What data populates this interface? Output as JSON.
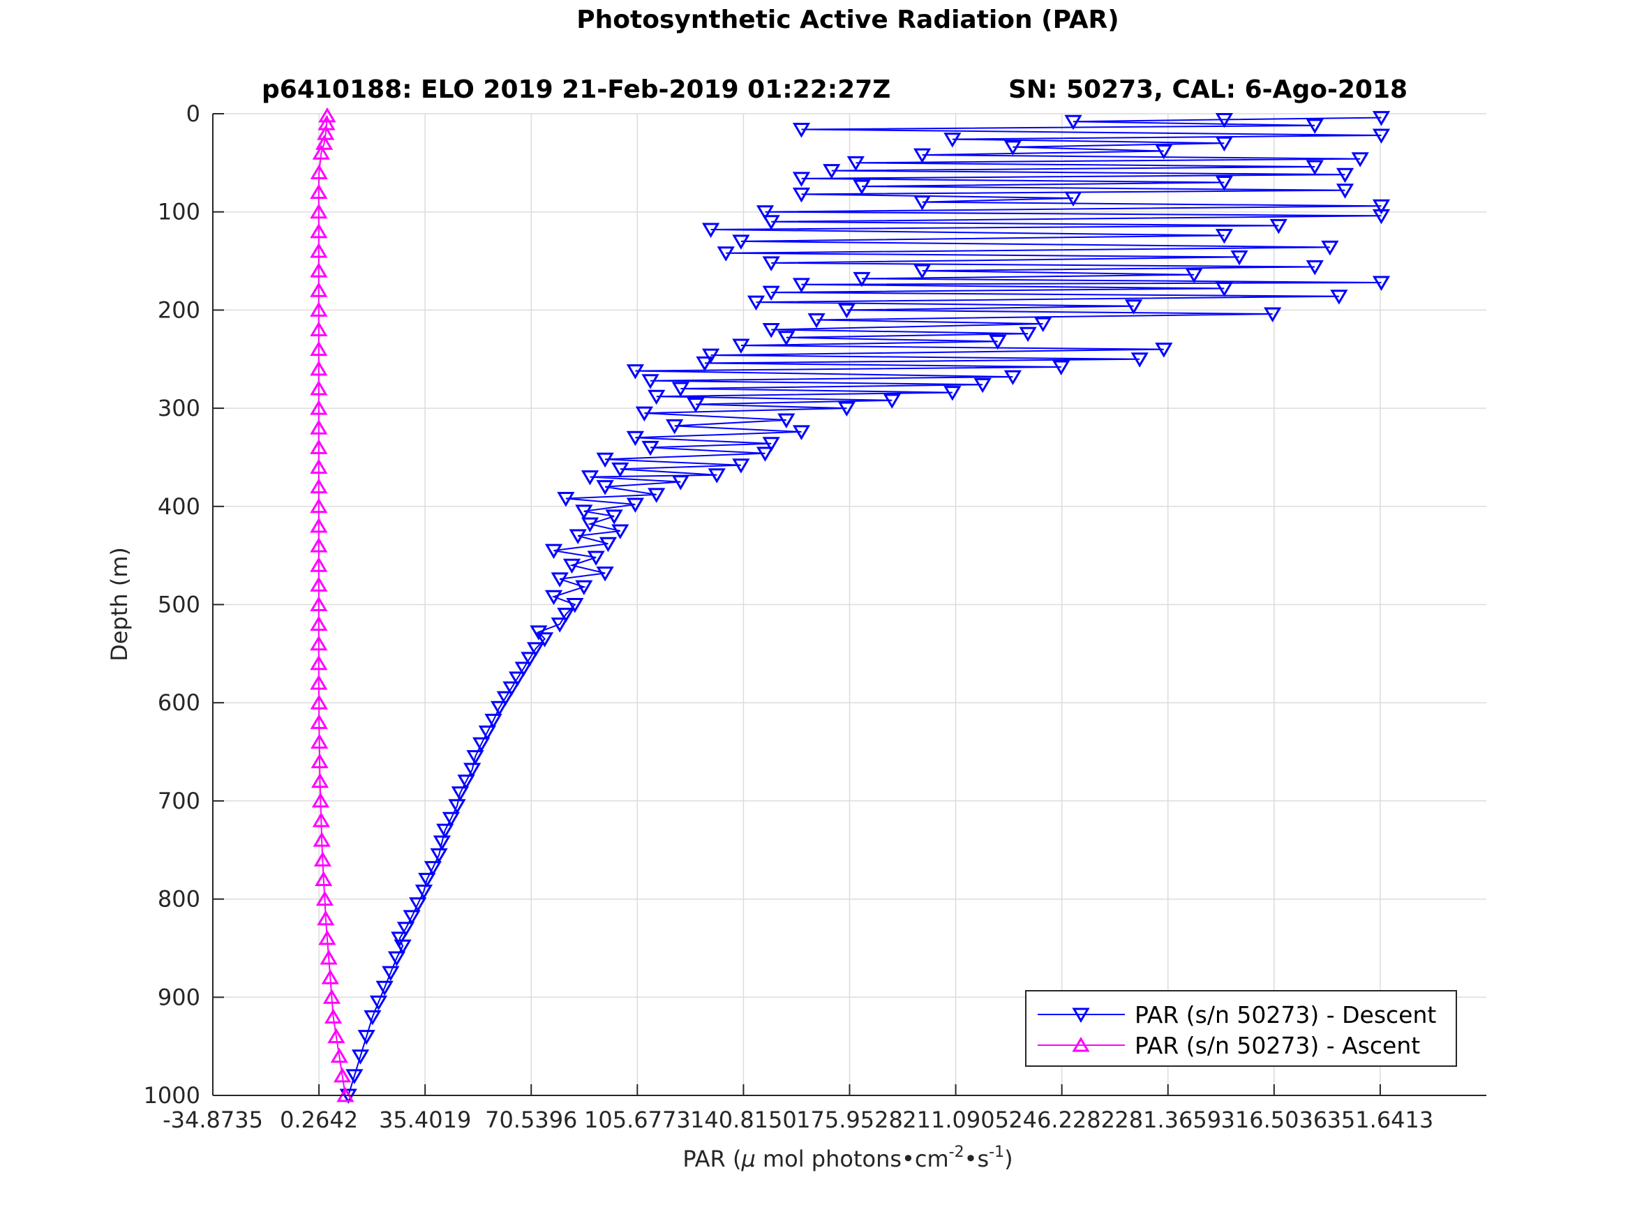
{
  "chart_data": {
    "type": "line",
    "title": "Photosynthetic Active Radiation (PAR)",
    "subtitle_left": "p6410188: ELO 2019 21-Feb-2019 01:22:27Z",
    "subtitle_right": "SN: 50273, CAL: 6-Ago-2018",
    "xlabel_prefix": "PAR (",
    "xlabel_mu": "μ",
    "xlabel_mid": " mol photons•cm",
    "xlabel_sup1": "-2",
    "xlabel_mid2": "•s",
    "xlabel_sup2": "-1",
    "xlabel_suffix": ")",
    "ylabel": "Depth (m)",
    "xlim": [
      -34.8735,
      386.779
    ],
    "ylim": [
      0,
      1000
    ],
    "y_reversed": true,
    "grid": true,
    "x_ticks": [
      -34.8735,
      0.2642,
      35.4019,
      70.5396,
      105.6773,
      140.815,
      175.9528,
      211.0905,
      246.2282,
      281.3659,
      316.5036,
      351.6413
    ],
    "x_tick_labels": [
      "-34.8735",
      "0.2642",
      "35.4019",
      "70.5396",
      "105.6773",
      "140.8150",
      "175.9528",
      "211.0905",
      "246.2282",
      "281.3659",
      "316.5036",
      "351.6413"
    ],
    "y_ticks": [
      0,
      100,
      200,
      300,
      400,
      500,
      600,
      700,
      800,
      900,
      1000
    ],
    "y_tick_labels": [
      "0",
      "100",
      "200",
      "300",
      "400",
      "500",
      "600",
      "700",
      "800",
      "900",
      "1000"
    ],
    "legend_position": "bottom-right",
    "series": [
      {
        "name": "PAR (s/n 50273) - Descent",
        "color": "#0000ff",
        "marker": "triangle-down",
        "points": [
          [
            10,
            1000
          ],
          [
            12,
            980
          ],
          [
            14,
            960
          ],
          [
            16,
            940
          ],
          [
            18,
            920
          ],
          [
            20,
            905
          ],
          [
            22,
            890
          ],
          [
            24,
            875
          ],
          [
            26,
            860
          ],
          [
            28,
            848
          ],
          [
            27,
            840
          ],
          [
            29,
            830
          ],
          [
            31,
            818
          ],
          [
            33,
            805
          ],
          [
            35,
            792
          ],
          [
            36,
            780
          ],
          [
            38,
            768
          ],
          [
            40,
            755
          ],
          [
            41,
            742
          ],
          [
            42,
            730
          ],
          [
            44,
            718
          ],
          [
            46,
            705
          ],
          [
            47,
            692
          ],
          [
            49,
            680
          ],
          [
            51,
            668
          ],
          [
            52,
            655
          ],
          [
            54,
            642
          ],
          [
            56,
            630
          ],
          [
            58,
            618
          ],
          [
            60,
            605
          ],
          [
            62,
            595
          ],
          [
            64,
            585
          ],
          [
            66,
            575
          ],
          [
            68,
            565
          ],
          [
            70,
            555
          ],
          [
            72,
            545
          ],
          [
            75,
            535
          ],
          [
            73,
            528
          ],
          [
            80,
            520
          ],
          [
            82,
            510
          ],
          [
            85,
            500
          ],
          [
            78,
            492
          ],
          [
            88,
            482
          ],
          [
            80,
            474
          ],
          [
            95,
            468
          ],
          [
            84,
            460
          ],
          [
            92,
            452
          ],
          [
            78,
            445
          ],
          [
            96,
            438
          ],
          [
            86,
            430
          ],
          [
            100,
            425
          ],
          [
            90,
            418
          ],
          [
            98,
            410
          ],
          [
            88,
            405
          ],
          [
            105,
            398
          ],
          [
            82,
            392
          ],
          [
            112,
            388
          ],
          [
            95,
            380
          ],
          [
            120,
            375
          ],
          [
            90,
            370
          ],
          [
            132,
            368
          ],
          [
            100,
            362
          ],
          [
            140,
            358
          ],
          [
            95,
            352
          ],
          [
            148,
            346
          ],
          [
            110,
            340
          ],
          [
            150,
            336
          ],
          [
            105,
            330
          ],
          [
            160,
            324
          ],
          [
            118,
            318
          ],
          [
            155,
            312
          ],
          [
            108,
            305
          ],
          [
            175,
            300
          ],
          [
            125,
            296
          ],
          [
            190,
            292
          ],
          [
            112,
            288
          ],
          [
            210,
            284
          ],
          [
            120,
            280
          ],
          [
            220,
            276
          ],
          [
            110,
            272
          ],
          [
            230,
            268
          ],
          [
            105,
            262
          ],
          [
            246,
            258
          ],
          [
            128,
            254
          ],
          [
            272,
            250
          ],
          [
            130,
            246
          ],
          [
            280,
            240
          ],
          [
            140,
            236
          ],
          [
            225,
            232
          ],
          [
            155,
            228
          ],
          [
            235,
            224
          ],
          [
            150,
            220
          ],
          [
            240,
            214
          ],
          [
            165,
            210
          ],
          [
            316,
            204
          ],
          [
            175,
            200
          ],
          [
            270,
            196
          ],
          [
            145,
            192
          ],
          [
            338,
            186
          ],
          [
            150,
            182
          ],
          [
            300,
            178
          ],
          [
            160,
            174
          ],
          [
            352,
            172
          ],
          [
            180,
            168
          ],
          [
            290,
            164
          ],
          [
            200,
            160
          ],
          [
            330,
            156
          ],
          [
            150,
            152
          ],
          [
            305,
            146
          ],
          [
            135,
            142
          ],
          [
            335,
            136
          ],
          [
            140,
            130
          ],
          [
            300,
            124
          ],
          [
            130,
            118
          ],
          [
            318,
            114
          ],
          [
            150,
            110
          ],
          [
            352,
            104
          ],
          [
            148,
            100
          ],
          [
            352,
            94
          ],
          [
            200,
            90
          ],
          [
            250,
            86
          ],
          [
            160,
            82
          ],
          [
            340,
            78
          ],
          [
            180,
            74
          ],
          [
            300,
            70
          ],
          [
            160,
            66
          ],
          [
            340,
            62
          ],
          [
            170,
            58
          ],
          [
            330,
            54
          ],
          [
            178,
            50
          ],
          [
            345,
            46
          ],
          [
            200,
            42
          ],
          [
            280,
            38
          ],
          [
            230,
            34
          ],
          [
            300,
            30
          ],
          [
            210,
            26
          ],
          [
            352,
            22
          ],
          [
            160,
            16
          ],
          [
            330,
            12
          ],
          [
            250,
            8
          ],
          [
            300,
            6
          ],
          [
            352,
            4
          ]
        ]
      },
      {
        "name": "PAR (s/n 50273) - Ascent",
        "color": "#ff00ff",
        "marker": "triangle-up",
        "points": [
          [
            9,
            1000
          ],
          [
            8,
            980
          ],
          [
            7,
            960
          ],
          [
            6,
            940
          ],
          [
            5,
            920
          ],
          [
            4.5,
            900
          ],
          [
            4,
            880
          ],
          [
            3.5,
            860
          ],
          [
            3,
            840
          ],
          [
            2.5,
            820
          ],
          [
            2.2,
            800
          ],
          [
            1.8,
            780
          ],
          [
            1.5,
            760
          ],
          [
            1.2,
            740
          ],
          [
            1,
            720
          ],
          [
            0.8,
            700
          ],
          [
            0.6,
            680
          ],
          [
            0.5,
            660
          ],
          [
            0.4,
            640
          ],
          [
            0.3,
            620
          ],
          [
            0.3,
            600
          ],
          [
            0.2,
            580
          ],
          [
            0.2,
            560
          ],
          [
            0.2,
            540
          ],
          [
            0.2,
            520
          ],
          [
            0.2,
            500
          ],
          [
            0.2,
            480
          ],
          [
            0.2,
            460
          ],
          [
            0.2,
            440
          ],
          [
            0.2,
            420
          ],
          [
            0.2,
            400
          ],
          [
            0.2,
            380
          ],
          [
            0.2,
            360
          ],
          [
            0.2,
            340
          ],
          [
            0.2,
            320
          ],
          [
            0.2,
            300
          ],
          [
            0.2,
            280
          ],
          [
            0.2,
            260
          ],
          [
            0.2,
            240
          ],
          [
            0.2,
            220
          ],
          [
            0.2,
            200
          ],
          [
            0.2,
            180
          ],
          [
            0.2,
            160
          ],
          [
            0.2,
            140
          ],
          [
            0.2,
            120
          ],
          [
            0.2,
            100
          ],
          [
            0.2,
            80
          ],
          [
            0.3,
            60
          ],
          [
            1,
            40
          ],
          [
            2,
            30
          ],
          [
            2.5,
            20
          ],
          [
            2.8,
            10
          ],
          [
            3,
            2
          ]
        ]
      }
    ]
  }
}
